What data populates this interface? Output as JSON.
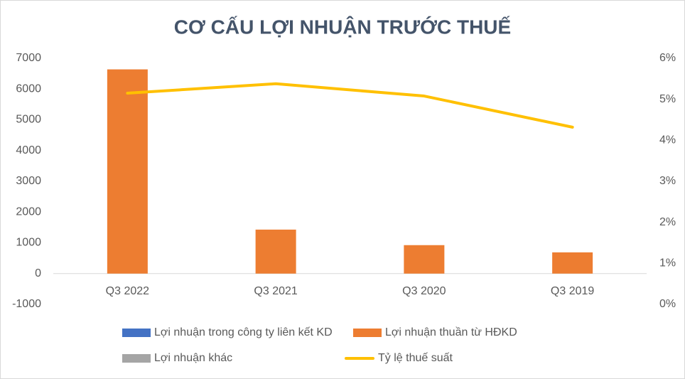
{
  "chart_data": {
    "type": "bar",
    "title": "CƠ CẤU LỢI NHUẬN TRƯỚC THUẾ",
    "categories": [
      "Q3 2022",
      "Q3 2021",
      "Q3 2020",
      "Q3 2019"
    ],
    "series": [
      {
        "name": "Lợi nhuận trong công ty liên kết KD",
        "color": "#4472c4",
        "type": "bar",
        "values": [
          0,
          0,
          0,
          0
        ]
      },
      {
        "name": "Lợi nhuận thuần từ HĐKD",
        "color": "#ed7d31",
        "type": "bar",
        "values": [
          6640,
          1430,
          925,
          690
        ]
      },
      {
        "name": "Lợi nhuận khác",
        "color": "#a5a5a5",
        "type": "bar",
        "values": [
          0,
          0,
          0,
          0
        ]
      },
      {
        "name": "Tỷ lệ thuế suất",
        "color": "#ffc000",
        "type": "line",
        "axis": "y2",
        "values": [
          5.15,
          5.38,
          5.08,
          4.32
        ]
      }
    ],
    "ylim": [
      -1000,
      7000
    ],
    "yticks": [
      -1000,
      0,
      1000,
      2000,
      3000,
      4000,
      5000,
      6000,
      7000
    ],
    "y2lim": [
      0,
      6
    ],
    "y2ticks": [
      {
        "value": 0,
        "label": "0%"
      },
      {
        "value": 1,
        "label": "1%"
      },
      {
        "value": 2,
        "label": "2%"
      },
      {
        "value": 3,
        "label": "3%"
      },
      {
        "value": 4,
        "label": "4%"
      },
      {
        "value": 5,
        "label": "5%"
      },
      {
        "value": 6,
        "label": "6%"
      }
    ],
    "grid": false
  }
}
